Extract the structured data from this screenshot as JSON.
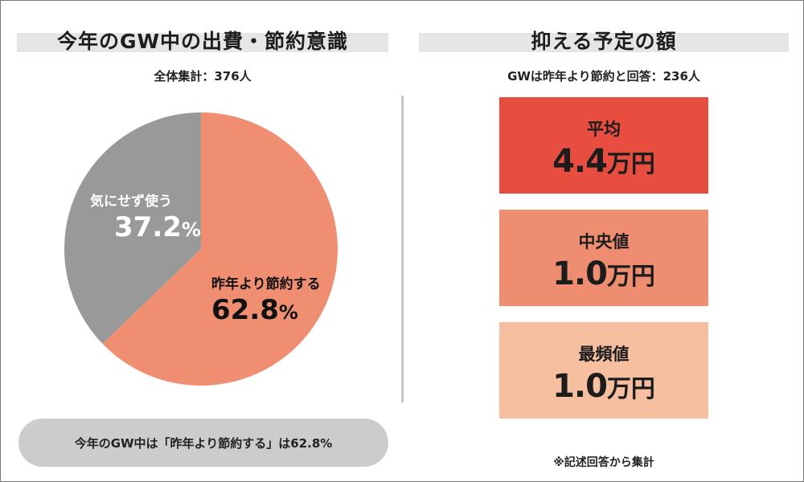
{
  "left_panel": {
    "title": "今年のGW中の出費・節約意識",
    "subtotal": "全体集計：376人",
    "summary": "今年のGW中は「昨年より節約する」は62.8%"
  },
  "right_panel": {
    "title": "抑える予定の額",
    "subtotal": "GWは昨年より節約と回答：236人",
    "stats": [
      {
        "label": "平均",
        "value": "4.4",
        "unit": "万円",
        "color": "#e84e3f"
      },
      {
        "label": "中央値",
        "value": "1.0",
        "unit": "万円",
        "color": "#ee8d70"
      },
      {
        "label": "最頻値",
        "value": "1.0",
        "unit": "万円",
        "color": "#f5bfa0"
      }
    ],
    "footnote": "※記述回答から集計"
  },
  "chart_data": {
    "type": "pie",
    "slices": [
      {
        "label": "昨年より節約する",
        "value": 62.8,
        "pct_text": "62.8",
        "unit": "%",
        "color": "#ef8e71"
      },
      {
        "label": "気にせず使う",
        "value": 37.2,
        "pct_text": "37.2",
        "unit": "%",
        "color": "#999999"
      }
    ],
    "start": "12 o'clock, clockwise"
  }
}
